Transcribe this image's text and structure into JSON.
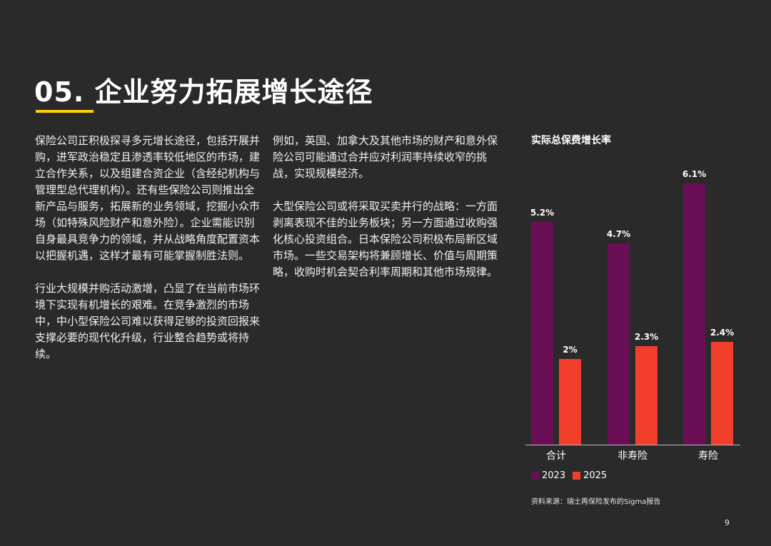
{
  "page": {
    "title": "05. 企业努力拓展增长途径",
    "page_number": "9",
    "accent_color": "#ffd100"
  },
  "body": {
    "column1": [
      "保险公司正积极探寻多元增长途径，包括开展并购，进军政治稳定且渗透率较低地区的市场，建立合作关系，以及组建合资企业（含经纪机构与管理型总代理机构）。还有些保险公司则推出全新产品与服务，拓展新的业务领域，挖掘小众市场（如特殊风险财产和意外险）。企业需能识别自身最具竞争力的领域，并从战略角度配置资本以把握机遇，这样才最有可能掌握制胜法则。",
      "行业大规模并购活动激增，凸显了在当前市场环境下实现有机增长的艰难。在竞争激烈的市场中，中小型保险公司难以获得足够的投资回报来支撑必要的现代化升级，行业整合趋势或将持续。"
    ],
    "column2": [
      "例如，英国、加拿大及其他市场的财产和意外保险公司可能通过合并应对利润率持续收窄的挑战，实现规模经济。",
      "大型保险公司或将采取买卖并行的战略：一方面剥离表现不佳的业务板块；另一方面通过收购强化核心投资组合。日本保险公司积极布局新区域市场。一些交易架构将兼顾增长、价值与周期策略，收购时机会契合利率周期和其他市场规律。"
    ]
  },
  "chart_data": {
    "type": "bar",
    "title": "实际总保费增长率",
    "categories": [
      "合计",
      "非寿险",
      "寿险"
    ],
    "series": [
      {
        "name": "2023",
        "values": [
          5.2,
          4.7,
          6.1
        ],
        "labels": [
          "5.2%",
          "4.7%",
          "6.1%"
        ],
        "color": "#6a0f55"
      },
      {
        "name": "2025",
        "values": [
          2.0,
          2.3,
          2.4
        ],
        "labels": [
          "2%",
          "2.3%",
          "2.4%"
        ],
        "color": "#f23f2b"
      }
    ],
    "ylim": [
      0,
      6.25
    ],
    "grid": false,
    "legend": "bottom-left",
    "source": "资料来源：瑞士再保险发布的Sigma报告"
  }
}
